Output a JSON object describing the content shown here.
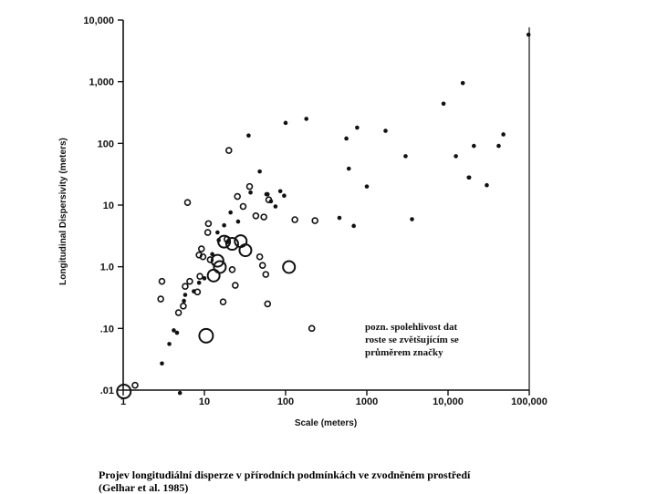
{
  "chart_data": {
    "type": "scatter",
    "title": "",
    "xlabel": "Scale (meters)",
    "ylabel": "Longitudinal Dispersivity (meters)",
    "xscale": "log",
    "yscale": "log",
    "xlim": [
      1,
      100000
    ],
    "ylim": [
      0.01,
      10000
    ],
    "x_tick_labels": [
      "1",
      "10",
      "100",
      "1000",
      "10,000",
      "100,000"
    ],
    "y_tick_labels": [
      ".01",
      ".10",
      "1.0",
      "10",
      "100",
      "1,000",
      "10,000"
    ],
    "grid": false,
    "legend": "none",
    "annotation": [
      "pozn. spolehlivost dat",
      "roste se zvětšujícím se",
      "průměrem značky"
    ],
    "series": [
      {
        "marker": "filled-dot",
        "x": [
          3,
          3.7,
          4.2,
          4.6,
          5,
          5.6,
          5.8,
          7.4,
          8.6,
          10,
          12.5,
          14.5,
          15,
          17.5,
          19,
          21,
          26,
          35,
          37,
          48,
          58,
          60,
          66,
          75,
          86,
          96,
          100,
          180,
          460,
          560,
          600,
          690,
          760,
          1000,
          1700,
          3600,
          3000,
          8800,
          12500,
          15200,
          18000,
          18200,
          20800,
          30000,
          42000,
          48000,
          98000
        ],
        "y": [
          0.027,
          0.056,
          0.093,
          0.085,
          0.009,
          0.28,
          0.35,
          0.4,
          0.55,
          0.65,
          1.6,
          3.6,
          2.7,
          4.7,
          2.5,
          7.6,
          5.4,
          134,
          16,
          35,
          15,
          15,
          11.5,
          9.5,
          16.8,
          14.2,
          215,
          250,
          6.2,
          120,
          39,
          4.6,
          180,
          20,
          160,
          5.9,
          62,
          440,
          62,
          950,
          28,
          28,
          91,
          21,
          91,
          140,
          5800
        ]
      },
      {
        "marker": "open-circle-small",
        "x": [
          1.4,
          2.9,
          3,
          4.8,
          5.5,
          5.8,
          6.2,
          6.6,
          8.2,
          8.6,
          8.8,
          9.2,
          9.6,
          11,
          11.2,
          11.8,
          17,
          19,
          20,
          22,
          24,
          25.5,
          30,
          36,
          43,
          48,
          52,
          54,
          57,
          60,
          62,
          130,
          210,
          230
        ],
        "y": [
          0.012,
          0.3,
          0.58,
          0.18,
          0.23,
          0.48,
          11,
          0.58,
          0.39,
          1.55,
          0.7,
          1.95,
          1.45,
          3.6,
          5,
          1.3,
          0.27,
          2.8,
          77,
          0.9,
          0.5,
          13.8,
          9.5,
          20,
          6.7,
          1.45,
          1.05,
          6.4,
          0.75,
          0.25,
          12.2,
          5.8,
          0.1,
          5.6
        ]
      },
      {
        "marker": "open-circle-large",
        "x": [
          1.02,
          10.5,
          13,
          14.5,
          15.5,
          17.5,
          22,
          28,
          32,
          110
        ],
        "y": [
          0.0095,
          0.076,
          0.72,
          1.25,
          0.99,
          2.55,
          2.35,
          2.6,
          1.85,
          0.99
        ],
        "size": [
          7.5,
          7.5,
          6.5,
          6.5,
          6.5,
          6.5,
          6.5,
          6.5,
          6.5,
          6.5
        ]
      }
    ]
  },
  "caption": {
    "line1": "Projev longitudiální disperze v přírodních podmínkách ve zvodněném prostředí",
    "line2": "(Gelhar et al. 1985)"
  },
  "colors": {
    "ink": "#111111",
    "background": "#ffffff"
  }
}
